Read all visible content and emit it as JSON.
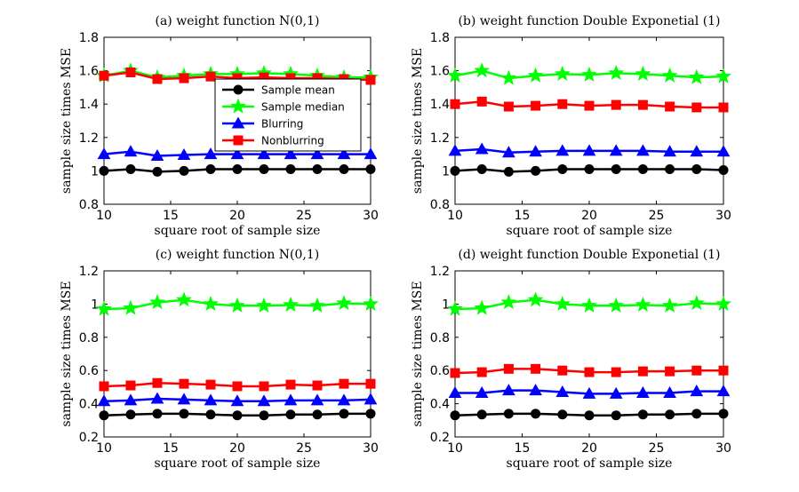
{
  "chart_data": [
    {
      "type": "line",
      "title": "(a) weight function N(0,1)",
      "xlabel": "square root of sample size",
      "ylabel": "sample size times MSE",
      "xlim": [
        10,
        30
      ],
      "ylim": [
        0.8,
        1.8
      ],
      "xticks": [
        "10",
        "15",
        "20",
        "25",
        "30"
      ],
      "yticks": [
        "0.8",
        "1",
        "1.2",
        "1.4",
        "1.6",
        "1.8"
      ],
      "legend": "center-right",
      "x": [
        10,
        12,
        14,
        16,
        18,
        20,
        22,
        24,
        26,
        28,
        30
      ],
      "series": [
        {
          "name": "Sample mean",
          "color": "#000000",
          "marker": "circle",
          "values": [
            1.0,
            1.01,
            0.995,
            1.0,
            1.01,
            1.01,
            1.01,
            1.01,
            1.01,
            1.01,
            1.01
          ]
        },
        {
          "name": "Sample median",
          "color": "#00ff00",
          "marker": "star",
          "values": [
            1.57,
            1.6,
            1.56,
            1.57,
            1.58,
            1.58,
            1.585,
            1.58,
            1.57,
            1.56,
            1.56
          ]
        },
        {
          "name": "Blurring",
          "color": "#0000ff",
          "marker": "triangle",
          "values": [
            1.1,
            1.115,
            1.09,
            1.095,
            1.1,
            1.1,
            1.1,
            1.1,
            1.1,
            1.1,
            1.1
          ]
        },
        {
          "name": "Nonblurring",
          "color": "#ff0000",
          "marker": "square",
          "values": [
            1.57,
            1.59,
            1.55,
            1.555,
            1.565,
            1.555,
            1.56,
            1.555,
            1.555,
            1.55,
            1.545
          ]
        }
      ]
    },
    {
      "type": "line",
      "title": "(b) weight function Double Exponetial (1)",
      "xlabel": "square root of sample size",
      "ylabel": "sample size times MSE",
      "xlim": [
        10,
        30
      ],
      "ylim": [
        0.8,
        1.8
      ],
      "xticks": [
        "10",
        "15",
        "20",
        "25",
        "30"
      ],
      "yticks": [
        "0.8",
        "1",
        "1.2",
        "1.4",
        "1.6",
        "1.8"
      ],
      "x": [
        10,
        12,
        14,
        16,
        18,
        20,
        22,
        24,
        26,
        28,
        30
      ],
      "series": [
        {
          "name": "Sample mean",
          "color": "#000000",
          "marker": "circle",
          "values": [
            1.0,
            1.01,
            0.995,
            1.0,
            1.01,
            1.01,
            1.01,
            1.01,
            1.01,
            1.01,
            1.005
          ]
        },
        {
          "name": "Sample median",
          "color": "#00ff00",
          "marker": "star",
          "values": [
            1.57,
            1.6,
            1.555,
            1.57,
            1.58,
            1.575,
            1.585,
            1.58,
            1.57,
            1.56,
            1.565
          ]
        },
        {
          "name": "Blurring",
          "color": "#0000ff",
          "marker": "triangle",
          "values": [
            1.12,
            1.13,
            1.11,
            1.115,
            1.12,
            1.12,
            1.12,
            1.12,
            1.115,
            1.115,
            1.115
          ]
        },
        {
          "name": "Nonblurring",
          "color": "#ff0000",
          "marker": "square",
          "values": [
            1.4,
            1.415,
            1.385,
            1.39,
            1.4,
            1.39,
            1.395,
            1.395,
            1.385,
            1.38,
            1.38
          ]
        }
      ]
    },
    {
      "type": "line",
      "title": "(c) weight function N(0,1)",
      "xlabel": "square root of sample size",
      "ylabel": "sample size times MSE",
      "xlim": [
        10,
        30
      ],
      "ylim": [
        0.2,
        1.2
      ],
      "xticks": [
        "10",
        "15",
        "20",
        "25",
        "30"
      ],
      "yticks": [
        "0.2",
        "0.4",
        "0.6",
        "0.8",
        "1",
        "1.2"
      ],
      "x": [
        10,
        12,
        14,
        16,
        18,
        20,
        22,
        24,
        26,
        28,
        30
      ],
      "series": [
        {
          "name": "Sample mean",
          "color": "#000000",
          "marker": "circle",
          "values": [
            0.33,
            0.335,
            0.34,
            0.34,
            0.335,
            0.33,
            0.33,
            0.335,
            0.335,
            0.34,
            0.34
          ]
        },
        {
          "name": "Sample median",
          "color": "#00ff00",
          "marker": "star",
          "values": [
            0.97,
            0.975,
            1.01,
            1.025,
            1.0,
            0.99,
            0.99,
            0.995,
            0.99,
            1.005,
            1.0
          ]
        },
        {
          "name": "Blurring",
          "color": "#0000ff",
          "marker": "triangle",
          "values": [
            0.415,
            0.42,
            0.43,
            0.425,
            0.42,
            0.415,
            0.415,
            0.42,
            0.42,
            0.42,
            0.425
          ]
        },
        {
          "name": "Nonblurring",
          "color": "#ff0000",
          "marker": "square",
          "values": [
            0.505,
            0.51,
            0.525,
            0.52,
            0.515,
            0.505,
            0.505,
            0.515,
            0.51,
            0.52,
            0.52
          ]
        }
      ]
    },
    {
      "type": "line",
      "title": "(d) weight function Double Exponetial (1)",
      "xlabel": "square root of sample size",
      "ylabel": "sample size times MSE",
      "xlim": [
        10,
        30
      ],
      "ylim": [
        0.2,
        1.2
      ],
      "xticks": [
        "10",
        "15",
        "20",
        "25",
        "30"
      ],
      "yticks": [
        "0.2",
        "0.4",
        "0.6",
        "0.8",
        "1",
        "1.2"
      ],
      "x": [
        10,
        12,
        14,
        16,
        18,
        20,
        22,
        24,
        26,
        28,
        30
      ],
      "series": [
        {
          "name": "Sample mean",
          "color": "#000000",
          "marker": "circle",
          "values": [
            0.33,
            0.335,
            0.34,
            0.34,
            0.335,
            0.33,
            0.33,
            0.335,
            0.335,
            0.34,
            0.34
          ]
        },
        {
          "name": "Sample median",
          "color": "#00ff00",
          "marker": "star",
          "values": [
            0.97,
            0.975,
            1.01,
            1.025,
            1.0,
            0.99,
            0.99,
            0.995,
            0.99,
            1.005,
            1.0
          ]
        },
        {
          "name": "Blurring",
          "color": "#0000ff",
          "marker": "triangle",
          "values": [
            0.465,
            0.465,
            0.48,
            0.48,
            0.47,
            0.46,
            0.46,
            0.465,
            0.465,
            0.475,
            0.475
          ]
        },
        {
          "name": "Nonblurring",
          "color": "#ff0000",
          "marker": "square",
          "values": [
            0.585,
            0.59,
            0.61,
            0.61,
            0.6,
            0.59,
            0.59,
            0.595,
            0.595,
            0.6,
            0.6
          ]
        }
      ]
    }
  ]
}
